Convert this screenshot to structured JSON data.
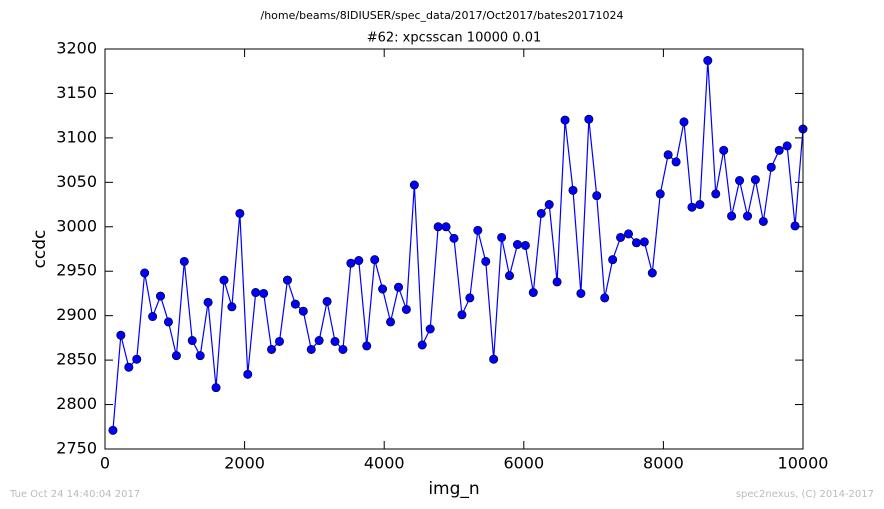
{
  "chart_data": {
    "type": "line",
    "suptitle": "/home/beams/8IDIUSER/spec_data/2017/Oct2017/bates20171024",
    "title": "#62: xpcsscan 10000 0.01",
    "x_label": "img_n",
    "y_label": "ccdc",
    "footer_left": "Tue Oct 24 14:40:04 2017",
    "footer_right": "spec2nexus, (C) 2014-2017",
    "xlim": [
      0,
      10000
    ],
    "xticks": [
      0,
      2000,
      4000,
      6000,
      8000,
      10000
    ],
    "ylim": [
      2750,
      3200
    ],
    "yticks": [
      2750,
      2800,
      2850,
      2900,
      2950,
      3000,
      3050,
      3100,
      3150,
      3200
    ],
    "grid": false,
    "x": [
      114,
      227,
      341,
      455,
      568,
      682,
      795,
      909,
      1023,
      1136,
      1250,
      1364,
      1477,
      1591,
      1705,
      1818,
      1932,
      2045,
      2159,
      2273,
      2386,
      2500,
      2614,
      2727,
      2841,
      2955,
      3068,
      3182,
      3295,
      3409,
      3523,
      3636,
      3750,
      3864,
      3977,
      4091,
      4205,
      4318,
      4432,
      4545,
      4659,
      4773,
      4886,
      5000,
      5114,
      5227,
      5341,
      5455,
      5568,
      5682,
      5795,
      5909,
      6023,
      6136,
      6250,
      6364,
      6477,
      6591,
      6705,
      6818,
      6932,
      7045,
      7159,
      7273,
      7386,
      7500,
      7614,
      7727,
      7841,
      7955,
      8068,
      8182,
      8295,
      8409,
      8523,
      8636,
      8750,
      8864,
      8977,
      9091,
      9205,
      9318,
      9432,
      9545,
      9659,
      9773,
      9886,
      10000
    ],
    "series": [
      {
        "name": "ccdc",
        "color": "#0000ff",
        "values": [
          2771,
          2878,
          2842,
          2851,
          2948,
          2899,
          2922,
          2893,
          2855,
          2961,
          2872,
          2855,
          2915,
          2819,
          2940,
          2910,
          3015,
          2834,
          2926,
          2925,
          2862,
          2871,
          2940,
          2913,
          2905,
          2862,
          2872,
          2916,
          2871,
          2862,
          2959,
          2962,
          2866,
          2963,
          2930,
          2893,
          2932,
          2907,
          3047,
          2867,
          2885,
          3000,
          3000,
          2987,
          2901,
          2920,
          2996,
          2961,
          2851,
          2988,
          2945,
          2980,
          2979,
          2926,
          3015,
          3025,
          2938,
          3120,
          3041,
          2925,
          3121,
          3035,
          2920,
          2963,
          2988,
          2992,
          2982,
          2983,
          2948,
          3037,
          3081,
          3073,
          3118,
          3022,
          3025,
          3187,
          3037,
          3086,
          3012,
          3052,
          3012,
          3053,
          3006,
          3067,
          3086,
          3091,
          3001,
          3110
        ]
      }
    ]
  }
}
